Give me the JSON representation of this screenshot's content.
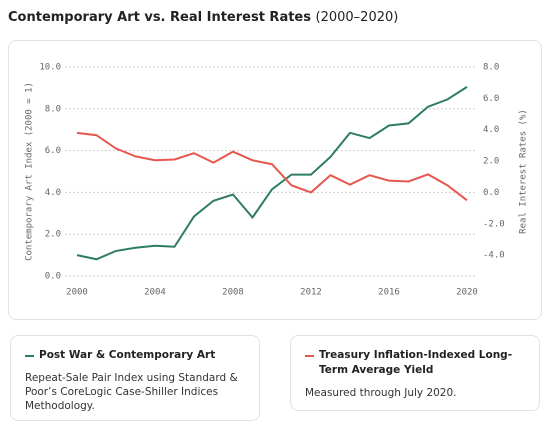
{
  "chart_data": {
    "type": "line",
    "title": "Contemporary Art vs. Real Interest Rates",
    "subtitle": "(2000–2020)",
    "y_label": "Contemporary Art Index (2000 = 1)",
    "y2_label": "Real Interest Rates (%)",
    "x": [
      2000,
      2001,
      2002,
      2003,
      2004,
      2005,
      2006,
      2007,
      2008,
      2009,
      2010,
      2011,
      2012,
      2013,
      2014,
      2015,
      2016,
      2017,
      2018,
      2019,
      2020
    ],
    "xlim": [
      2000,
      2020
    ],
    "xticks": [
      2000,
      2004,
      2008,
      2012,
      2016,
      2020
    ],
    "ylim": [
      0,
      10
    ],
    "yticks": [
      {
        "value": 0,
        "label": "0.0"
      },
      {
        "value": 2,
        "label": "2.0"
      },
      {
        "value": 4,
        "label": "4.0"
      },
      {
        "value": 6,
        "label": "6.0"
      },
      {
        "value": 8,
        "label": "8.0"
      },
      {
        "value": 10,
        "label": "10.0"
      }
    ],
    "y2lim": [
      -5.33,
      8
    ],
    "y2ticks": [
      {
        "value": -4,
        "label": "-4.0"
      },
      {
        "value": -2,
        "label": "-2.0"
      },
      {
        "value": 0,
        "label": "0.0"
      },
      {
        "value": 2,
        "label": "2.0"
      },
      {
        "value": 4,
        "label": "4.0"
      },
      {
        "value": 6,
        "label": "6.0"
      },
      {
        "value": 8,
        "label": "8.0"
      }
    ],
    "grid": true,
    "series": [
      {
        "name": "Post War & Contemporary Art",
        "color": "#2e7d5e",
        "description": "Repeat-Sale Pair Index using Standard & Poor’s CoreLogic Case-Shiller Indices Methodology.",
        "values": [
          1.0,
          0.8,
          1.2,
          1.35,
          1.45,
          1.4,
          2.85,
          3.6,
          3.9,
          2.8,
          4.15,
          4.85,
          4.85,
          5.7,
          6.85,
          6.6,
          7.2,
          7.3,
          8.1,
          8.45,
          9.05
        ]
      },
      {
        "name": "Treasury Inflation-Indexed Long-Term Average Yield",
        "color": "#e5574f",
        "axis": "y2",
        "description": "Measured through July 2020.",
        "values": [
          3.8,
          3.65,
          2.8,
          2.3,
          2.05,
          2.1,
          2.5,
          1.9,
          2.6,
          2.05,
          1.8,
          0.45,
          0.0,
          1.1,
          0.5,
          1.1,
          0.75,
          0.7,
          1.15,
          0.45,
          -0.5
        ]
      }
    ]
  }
}
